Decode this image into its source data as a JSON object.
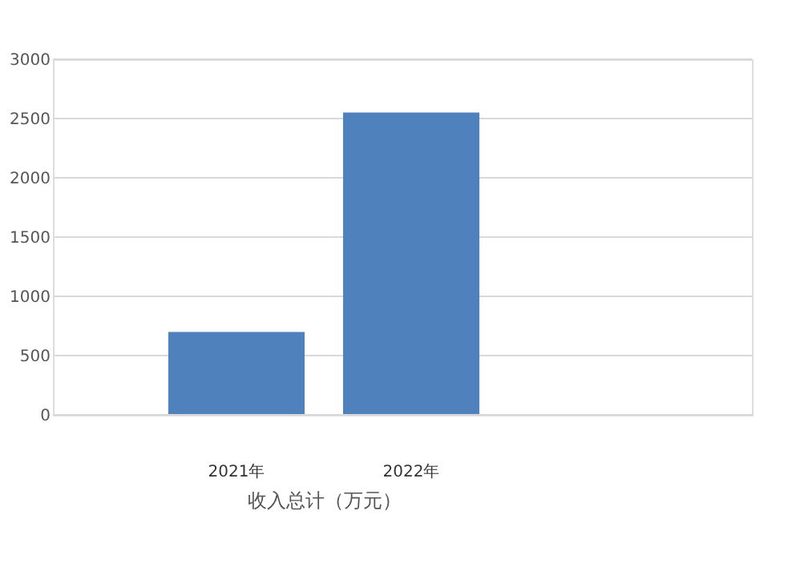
{
  "chart_data": {
    "type": "bar",
    "xlabel": "收入总计（万元）",
    "categories": [
      "2021年",
      "2022年"
    ],
    "values": [
      700,
      2550
    ],
    "color": "#4f81bd",
    "ylim": [
      0,
      3000
    ],
    "yticks": [
      0,
      500,
      1000,
      1500,
      2000,
      2500,
      3000
    ],
    "grid": "y"
  }
}
